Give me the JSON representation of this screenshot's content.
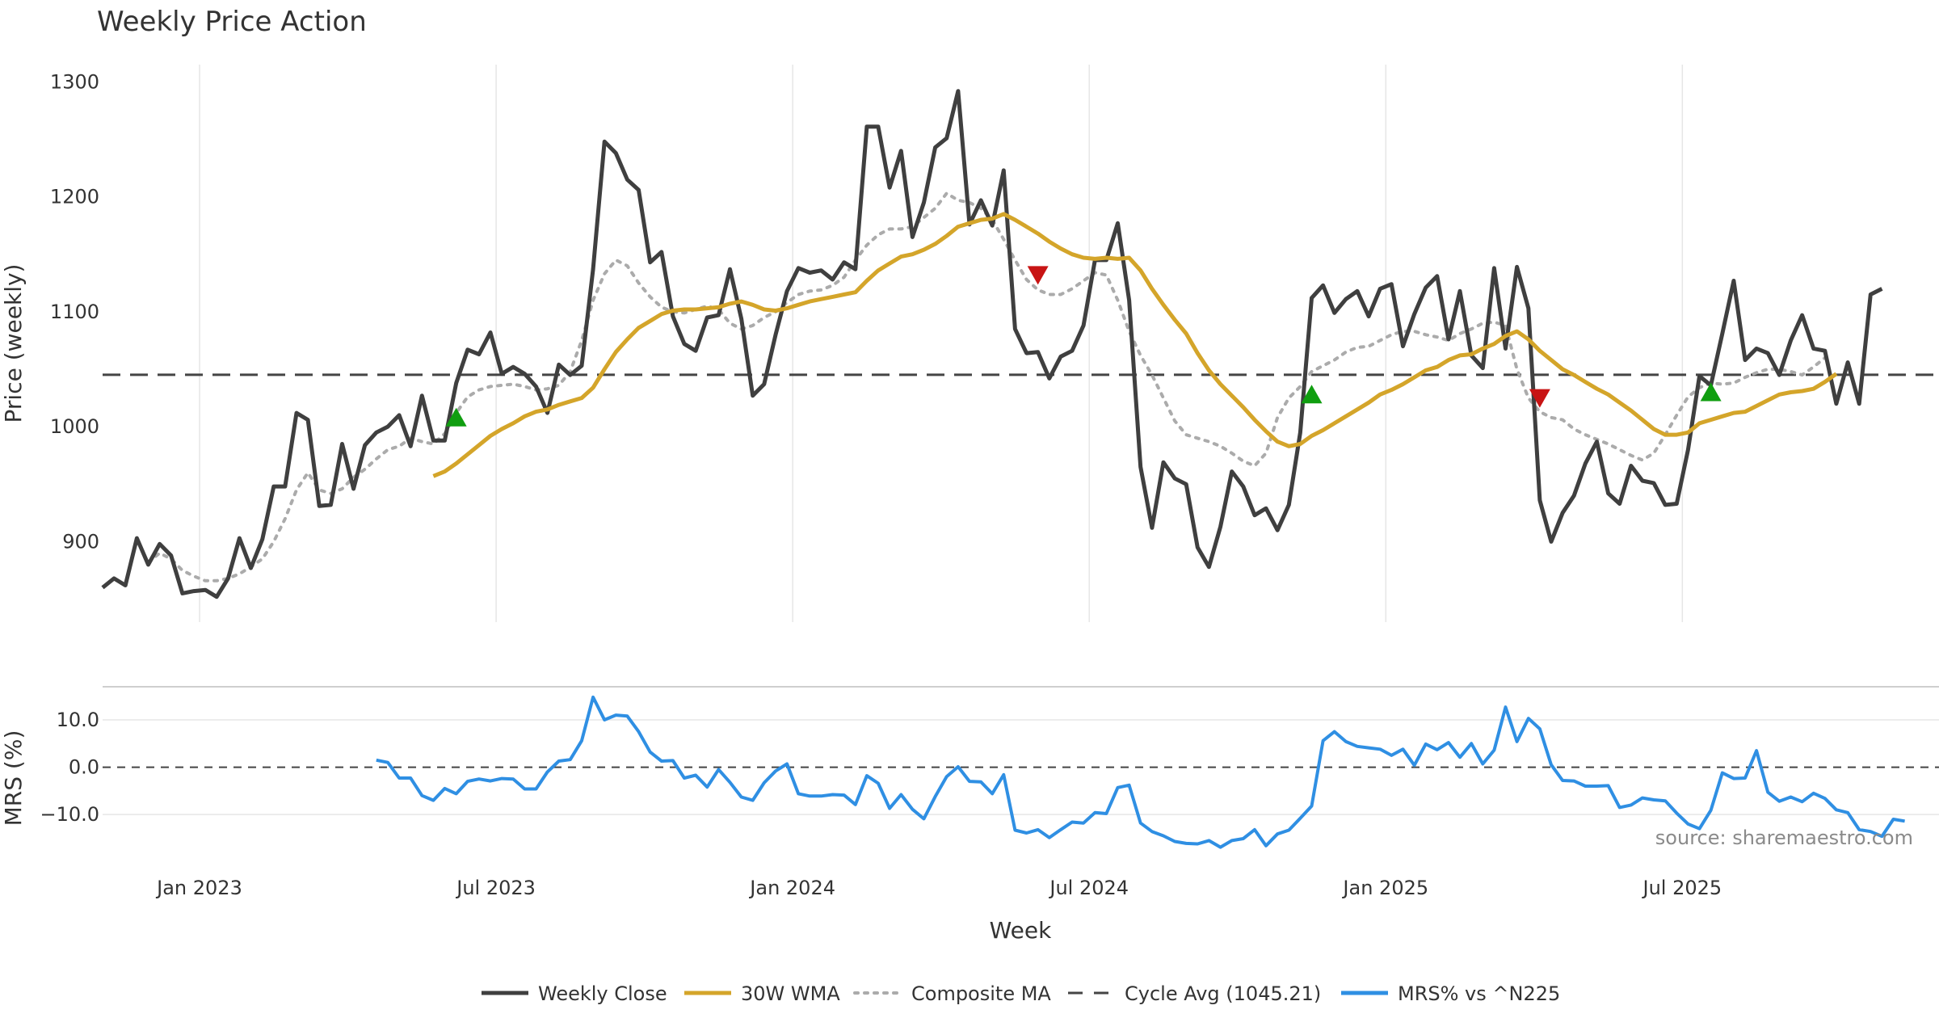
{
  "chart_data": {
    "type": "line",
    "title": "Weekly Price Action",
    "xlabel": "Week",
    "price_panel": {
      "ylabel": "Price (weekly)",
      "ylim": [
        830,
        1315
      ],
      "yticks": [
        900,
        1000,
        1100,
        1200,
        1300
      ],
      "cycle_avg": 1045.21
    },
    "mrs_panel": {
      "ylabel": "MRS (%)",
      "ylim": [
        -18,
        17
      ],
      "ytick_values": [
        10,
        0,
        -10
      ],
      "ytick_labels": [
        "10.0",
        "0.0",
        "−10.0"
      ]
    },
    "x_domain": [
      0,
      161
    ],
    "x_ticks": [
      {
        "label": "Jan 2023",
        "x": 8.5
      },
      {
        "label": "Jul 2023",
        "x": 34.5
      },
      {
        "label": "Jan 2024",
        "x": 60.5
      },
      {
        "label": "Jul 2024",
        "x": 86.5
      },
      {
        "label": "Jan 2025",
        "x": 112.5
      },
      {
        "label": "Jul 2025",
        "x": 138.5
      }
    ],
    "series": [
      {
        "name": "Weekly Close",
        "start": 0,
        "values": [
          860,
          868,
          862,
          903,
          880,
          898,
          888,
          855,
          857,
          858,
          852,
          868,
          903,
          877,
          902,
          948,
          948,
          1012,
          1006,
          931,
          932,
          985,
          946,
          984,
          995,
          1000,
          1010,
          983,
          1027,
          988,
          988,
          1038,
          1067,
          1063,
          1082,
          1046,
          1052,
          1046,
          1035,
          1012,
          1054,
          1045,
          1053,
          1137,
          1248,
          1238,
          1215,
          1206,
          1143,
          1152,
          1096,
          1072,
          1066,
          1095,
          1097,
          1137,
          1094,
          1027,
          1037,
          1080,
          1118,
          1138,
          1134,
          1136,
          1128,
          1143,
          1137,
          1261,
          1261,
          1208,
          1240,
          1165,
          1195,
          1243,
          1251,
          1292,
          1176,
          1197,
          1175,
          1223,
          1085,
          1064,
          1065,
          1042,
          1061,
          1066,
          1088,
          1145,
          1145,
          1177,
          1110,
          965,
          912,
          969,
          955,
          950,
          895,
          878,
          913,
          961,
          948,
          923,
          929,
          910,
          932,
          995,
          1112,
          1123,
          1099,
          1111,
          1118,
          1096,
          1120,
          1124,
          1070,
          1098,
          1121,
          1131,
          1076,
          1118,
          1062,
          1051,
          1138,
          1068,
          1139,
          1103,
          936,
          900,
          925,
          940,
          968,
          987,
          942,
          933,
          966,
          953,
          951,
          932,
          933,
          980,
          1044,
          1036,
          1081,
          1127,
          1058,
          1068,
          1064,
          1045,
          1075,
          1097,
          1068,
          1066,
          1020,
          1056,
          1020,
          1115,
          1120
        ]
      },
      {
        "name": "30W WMA",
        "start": 29,
        "values": [
          957,
          961,
          968,
          976,
          984,
          992,
          998,
          1003,
          1009,
          1013,
          1015,
          1019,
          1022,
          1025,
          1034,
          1050,
          1065,
          1076,
          1086,
          1092,
          1098,
          1101,
          1102,
          1102,
          1103,
          1104,
          1107,
          1109,
          1106,
          1102,
          1101,
          1103,
          1106,
          1109,
          1111,
          1113,
          1115,
          1117,
          1127,
          1136,
          1142,
          1148,
          1150,
          1154,
          1159,
          1166,
          1174,
          1177,
          1180,
          1181,
          1185,
          1180,
          1174,
          1168,
          1161,
          1155,
          1150,
          1147,
          1146,
          1147,
          1146,
          1147,
          1136,
          1120,
          1106,
          1093,
          1081,
          1064,
          1049,
          1037,
          1027,
          1017,
          1006,
          996,
          987,
          983,
          985,
          992,
          997,
          1003,
          1009,
          1015,
          1021,
          1028,
          1032,
          1037,
          1043,
          1049,
          1052,
          1058,
          1062,
          1063,
          1068,
          1072,
          1079,
          1083,
          1076,
          1066,
          1058,
          1050,
          1045,
          1039,
          1033,
          1028,
          1021,
          1014,
          1006,
          998,
          993,
          993,
          995,
          1003,
          1006,
          1009,
          1012,
          1013,
          1018,
          1023,
          1028,
          1030,
          1031,
          1033,
          1039,
          1046
        ]
      },
      {
        "name": "Composite MA",
        "start": 4,
        "values": [
          882,
          890,
          885,
          875,
          870,
          866,
          866,
          868,
          872,
          878,
          885,
          900,
          920,
          945,
          960,
          945,
          942,
          946,
          956,
          963,
          972,
          980,
          983,
          990,
          987,
          985,
          994,
          1012,
          1026,
          1032,
          1035,
          1036,
          1037,
          1035,
          1032,
          1033,
          1036,
          1048,
          1075,
          1110,
          1133,
          1145,
          1140,
          1125,
          1113,
          1104,
          1100,
          1099,
          1102,
          1105,
          1102,
          1090,
          1085,
          1088,
          1095,
          1100,
          1108,
          1115,
          1118,
          1119,
          1123,
          1130,
          1145,
          1158,
          1167,
          1172,
          1172,
          1174,
          1182,
          1190,
          1203,
          1197,
          1195,
          1190,
          1180,
          1163,
          1145,
          1128,
          1119,
          1115,
          1115,
          1120,
          1127,
          1134,
          1132,
          1110,
          1083,
          1062,
          1045,
          1025,
          1005,
          993,
          990,
          987,
          983,
          977,
          970,
          966,
          977,
          1008,
          1025,
          1035,
          1048,
          1053,
          1058,
          1065,
          1069,
          1070,
          1075,
          1080,
          1083,
          1083,
          1080,
          1078,
          1075,
          1081,
          1085,
          1090,
          1091,
          1088,
          1050,
          1025,
          1013,
          1008,
          1006,
          998,
          993,
          989,
          985,
          980,
          975,
          971,
          977,
          993,
          1010,
          1026,
          1034,
          1038,
          1037,
          1038,
          1043,
          1047,
          1050,
          1050,
          1048,
          1045,
          1052,
          1060
        ]
      },
      {
        "name": "Cycle Avg (1045.21)"
      },
      {
        "name": "MRS% vs ^N225",
        "start": 24,
        "values": [
          1.5,
          1.0,
          -2.3,
          -2.3,
          -6.0,
          -7.0,
          -4.5,
          -5.6,
          -3.0,
          -2.5,
          -2.9,
          -2.4,
          -2.5,
          -4.6,
          -4.6,
          -1.0,
          1.3,
          1.6,
          5.6,
          14.8,
          10.0,
          11.0,
          10.8,
          7.5,
          3.2,
          1.3,
          1.4,
          -2.3,
          -1.7,
          -4.2,
          -0.5,
          -3.2,
          -6.3,
          -7.0,
          -3.3,
          -0.8,
          0.7,
          -5.6,
          -6.1,
          -6.1,
          -5.8,
          -5.9,
          -7.9,
          -1.8,
          -3.4,
          -8.7,
          -5.8,
          -8.9,
          -10.9,
          -6.2,
          -2.0,
          0.1,
          -3.0,
          -3.1,
          -5.6,
          -1.6,
          -13.3,
          -13.9,
          -13.2,
          -14.9,
          -13.2,
          -11.6,
          -11.8,
          -9.6,
          -9.8,
          -4.3,
          -3.8,
          -11.8,
          -13.6,
          -14.5,
          -15.7,
          -16.1,
          -16.2,
          -15.5,
          -16.9,
          -15.5,
          -15.1,
          -13.2,
          -16.6,
          -14.1,
          -13.3,
          -10.8,
          -8.2,
          5.6,
          7.5,
          5.4,
          4.4,
          4.1,
          3.8,
          2.5,
          3.8,
          0.4,
          4.9,
          3.7,
          5.2,
          2.1,
          5.0,
          0.7,
          3.6,
          12.7,
          5.4,
          10.3,
          8.1,
          0.5,
          -2.8,
          -2.9,
          -4.0,
          -4.0,
          -3.9,
          -8.5,
          -8.0,
          -6.5,
          -6.9,
          -7.1,
          -9.7,
          -12.0,
          -13.0,
          -9.1,
          -1.2,
          -2.4,
          -2.3,
          3.5,
          -5.3,
          -7.2,
          -6.3,
          -7.3,
          -5.5,
          -6.6,
          -9.0,
          -9.6,
          -13.2,
          -13.6,
          -14.6,
          -11.0,
          -11.4
        ]
      }
    ],
    "buy_signals": [
      {
        "x": 31,
        "y": 1008
      },
      {
        "x": 106,
        "y": 1028
      },
      {
        "x": 141,
        "y": 1030
      }
    ],
    "sell_signals": [
      {
        "x": 82,
        "y": 1132
      },
      {
        "x": 126,
        "y": 1025
      }
    ],
    "legend": [
      {
        "label": "Weekly Close",
        "color": "#3f3f3f",
        "style": "solid"
      },
      {
        "label": "30W WMA",
        "color": "#d4a52a",
        "style": "solid"
      },
      {
        "label": "Composite MA",
        "color": "#ababab",
        "style": "dotted"
      },
      {
        "label": "Cycle Avg (1045.21)",
        "color": "#444444",
        "style": "dashed"
      },
      {
        "label": "MRS% vs ^N225",
        "color": "#2f8fe3",
        "style": "solid"
      }
    ],
    "source_note": "source: sharemaestro.com",
    "colors": {
      "close": "#3f3f3f",
      "wma": "#d4a52a",
      "composite": "#ababab",
      "cycle": "#444444",
      "mrs": "#2f8fe3",
      "buy": "#109e10",
      "sell": "#c81414",
      "grid": "#e6e6e6"
    }
  }
}
